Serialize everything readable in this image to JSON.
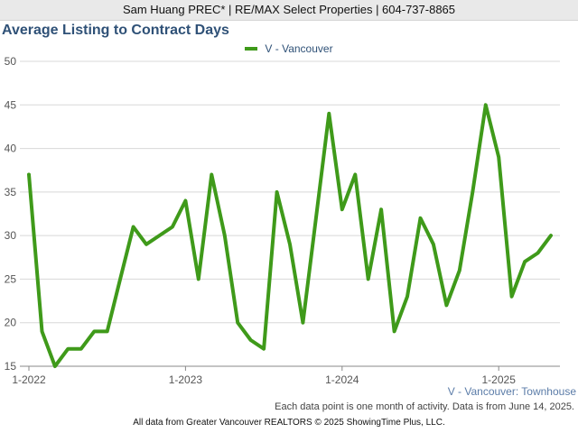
{
  "header": {
    "text": "Sam Huang PREC* | RE/MAX Select Properties | 604-737-8865"
  },
  "chart_data": {
    "type": "line",
    "title": "Average Listing to Contract Days",
    "subtitle": "V - Vancouver: Townhouse",
    "xlabel": "",
    "ylabel": "",
    "ylim": [
      15,
      50
    ],
    "yticks": [
      15,
      20,
      25,
      30,
      35,
      40,
      45,
      50
    ],
    "xticks": [
      "1-2022",
      "1-2023",
      "1-2024",
      "1-2025"
    ],
    "x": [
      "1-2022",
      "2-2022",
      "3-2022",
      "4-2022",
      "5-2022",
      "6-2022",
      "7-2022",
      "8-2022",
      "9-2022",
      "10-2022",
      "11-2022",
      "12-2022",
      "1-2023",
      "2-2023",
      "3-2023",
      "4-2023",
      "5-2023",
      "6-2023",
      "7-2023",
      "8-2023",
      "9-2023",
      "10-2023",
      "11-2023",
      "12-2023",
      "1-2024",
      "2-2024",
      "3-2024",
      "4-2024",
      "5-2024",
      "6-2024",
      "7-2024",
      "8-2024",
      "9-2024",
      "10-2024",
      "11-2024",
      "12-2024",
      "1-2025",
      "2-2025",
      "3-2025",
      "4-2025",
      "5-2025"
    ],
    "series": [
      {
        "name": "V - Vancouver",
        "color": "#3f9a1a",
        "values": [
          37,
          19,
          15,
          17,
          17,
          19,
          19,
          25,
          31,
          29,
          30,
          31,
          34,
          25,
          37,
          30,
          20,
          18,
          17,
          35,
          29,
          20,
          32,
          44,
          33,
          37,
          25,
          33,
          19,
          23,
          32,
          29,
          22,
          26,
          35,
          45,
          39,
          23,
          27,
          28,
          30
        ]
      }
    ],
    "grid": true,
    "legend_position": "top-center"
  },
  "notes": {
    "activity": "Each data point is one month of activity. Data is from June 14, 2025.",
    "source": "All data from Greater Vancouver REALTORS © 2025 ShowingTime Plus, LLC."
  }
}
